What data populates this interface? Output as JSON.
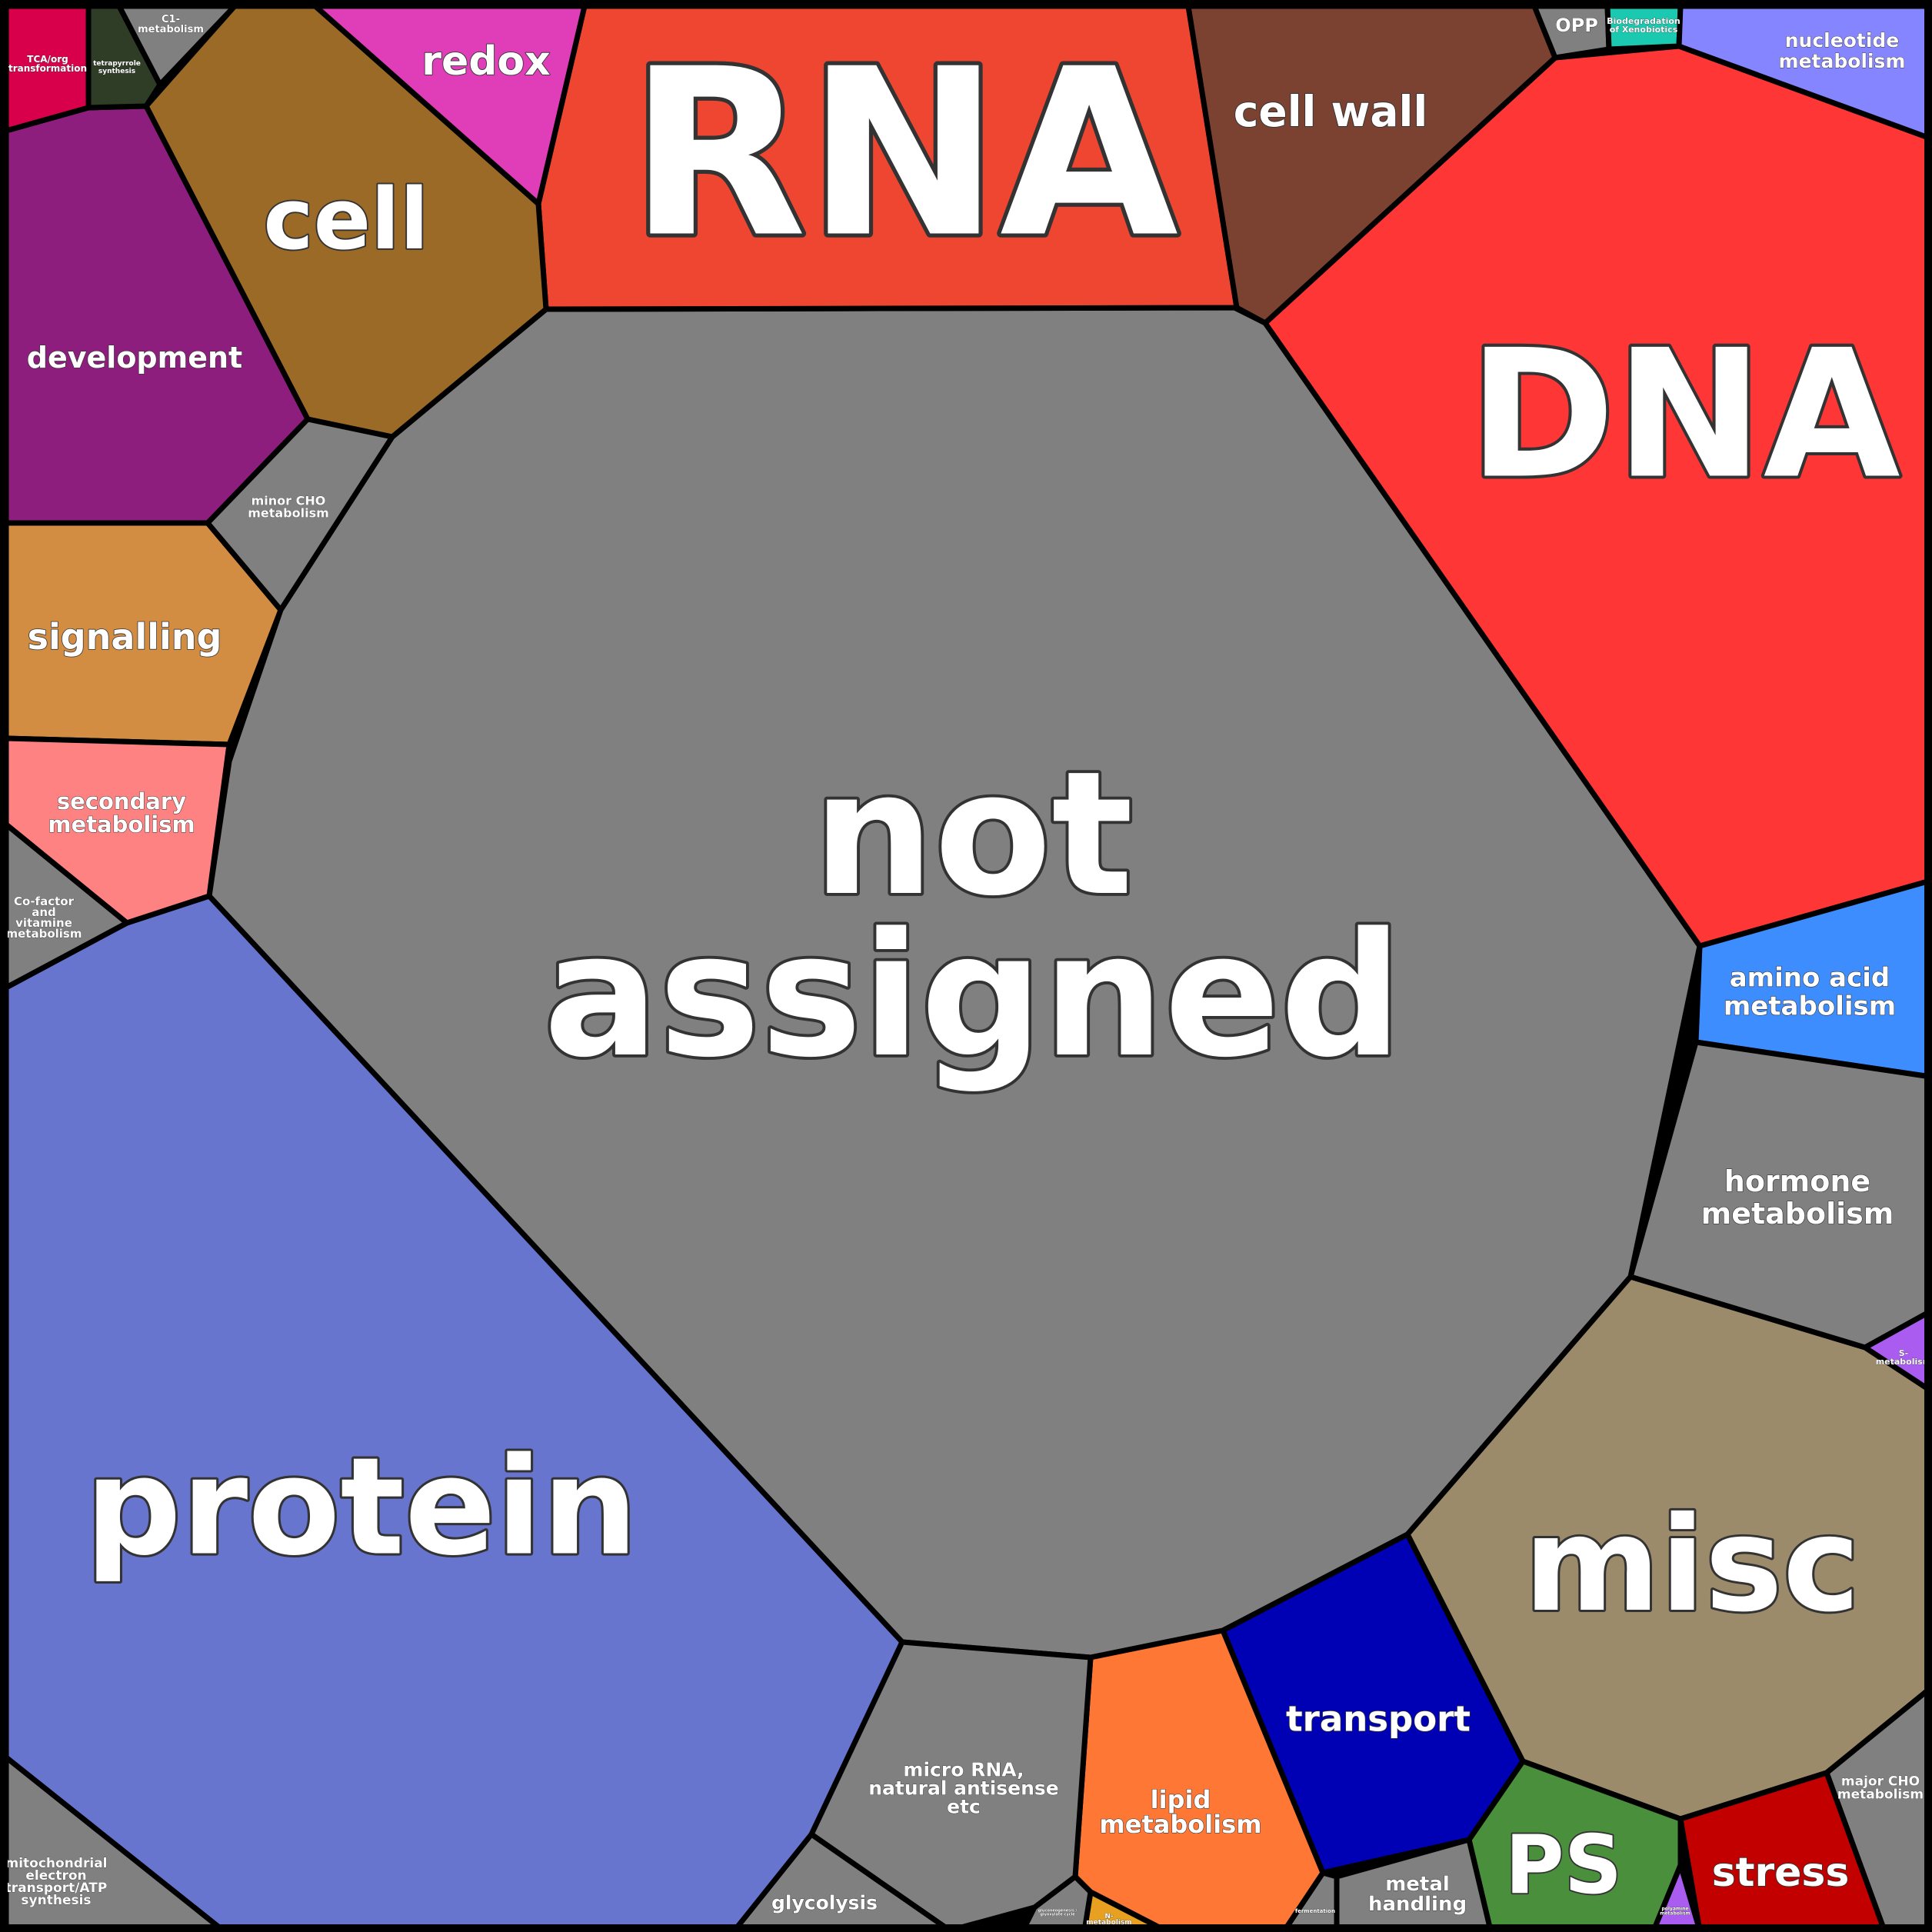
{
  "colors": {
    "border": "#000000",
    "label": "#ffffff"
  },
  "cells": [
    {
      "id": "not-assigned",
      "lines": [
        "not",
        "assigned"
      ],
      "color": "#808080"
    },
    {
      "id": "rna",
      "lines": [
        "RNA"
      ],
      "color": "#ee4631"
    },
    {
      "id": "dna",
      "lines": [
        "DNA"
      ],
      "color": "#ff3636"
    },
    {
      "id": "protein",
      "lines": [
        "protein"
      ],
      "color": "#6775cf"
    },
    {
      "id": "misc",
      "lines": [
        "misc"
      ],
      "color": "#9b8b6b"
    },
    {
      "id": "cell",
      "lines": [
        "cell"
      ],
      "color": "#9b6a27"
    },
    {
      "id": "cell-wall",
      "lines": [
        "cell wall"
      ],
      "color": "#7b4232"
    },
    {
      "id": "redox",
      "lines": [
        "redox"
      ],
      "color": "#e03db9"
    },
    {
      "id": "development",
      "lines": [
        "development"
      ],
      "color": "#8e1e7d"
    },
    {
      "id": "signalling",
      "lines": [
        "signalling"
      ],
      "color": "#d28d42"
    },
    {
      "id": "secondary-metabolism",
      "lines": [
        "secondary",
        "metabolism"
      ],
      "color": "#ff8282"
    },
    {
      "id": "cofactor-vitamine-metabolism",
      "lines": [
        "Co-factor",
        "and",
        "vitamine",
        "metabolism"
      ],
      "color": "#808080"
    },
    {
      "id": "minor-cho-metabolism",
      "lines": [
        "minor CHO",
        "metabolism"
      ],
      "color": "#808080"
    },
    {
      "id": "tca-org-transformation",
      "lines": [
        "TCA/org",
        "transformation"
      ],
      "color": "#d8004a"
    },
    {
      "id": "tetrapyrrole-synthesis",
      "lines": [
        "tetrapyrrole",
        "synthesis"
      ],
      "color": "#2f3d26"
    },
    {
      "id": "c1-metabolism",
      "lines": [
        "C1-",
        "metabolism"
      ],
      "color": "#808080"
    },
    {
      "id": "opp",
      "lines": [
        "OPP"
      ],
      "color": "#808080"
    },
    {
      "id": "biodegradation-xenobiotics",
      "lines": [
        "Biodegradation",
        "of Xenobiotics"
      ],
      "color": "#1bc9b0"
    },
    {
      "id": "nucleotide-metabolism",
      "lines": [
        "nucleotide",
        "metabolism"
      ],
      "color": "#8585ff"
    },
    {
      "id": "amino-acid-metabolism",
      "lines": [
        "amino acid",
        "metabolism"
      ],
      "color": "#3e8dff"
    },
    {
      "id": "hormone-metabolism",
      "lines": [
        "hormone",
        "metabolism"
      ],
      "color": "#808080"
    },
    {
      "id": "s-metabolism",
      "lines": [
        "S-",
        "metabolism"
      ],
      "color": "#aa5cf0"
    },
    {
      "id": "major-cho-metabolism",
      "lines": [
        "major CHO",
        "metabolism"
      ],
      "color": "#808080"
    },
    {
      "id": "stress",
      "lines": [
        "stress"
      ],
      "color": "#c20000"
    },
    {
      "id": "polyamine-metabolism",
      "lines": [
        "polyamine",
        "metabolism"
      ],
      "color": "#aa5cf0"
    },
    {
      "id": "ps",
      "lines": [
        "PS"
      ],
      "color": "#4a8f3c"
    },
    {
      "id": "metal-handling",
      "lines": [
        "metal",
        "handling"
      ],
      "color": "#808080"
    },
    {
      "id": "fermentation",
      "lines": [
        "fermentation"
      ],
      "color": "#808080"
    },
    {
      "id": "transport",
      "lines": [
        "transport"
      ],
      "color": "#0000b4"
    },
    {
      "id": "lipid-metabolism",
      "lines": [
        "lipid",
        "metabolism"
      ],
      "color": "#ff7734"
    },
    {
      "id": "n-metabolism",
      "lines": [
        "N-",
        "metabolism"
      ],
      "color": "#e8a020"
    },
    {
      "id": "gluconeogenesis",
      "lines": [
        "gluconeogenesis /",
        "glyoxylate cycle"
      ],
      "color": "#808080"
    },
    {
      "id": "micro-rna",
      "lines": [
        "micro RNA,",
        "natural antisense",
        "etc"
      ],
      "color": "#808080"
    },
    {
      "id": "glycolysis",
      "lines": [
        "glycolysis"
      ],
      "color": "#808080"
    },
    {
      "id": "mitochondrial-electron-transport",
      "lines": [
        "mitochondrial",
        "electron",
        "transport/ATP",
        "synthesis"
      ],
      "color": "#808080"
    }
  ]
}
